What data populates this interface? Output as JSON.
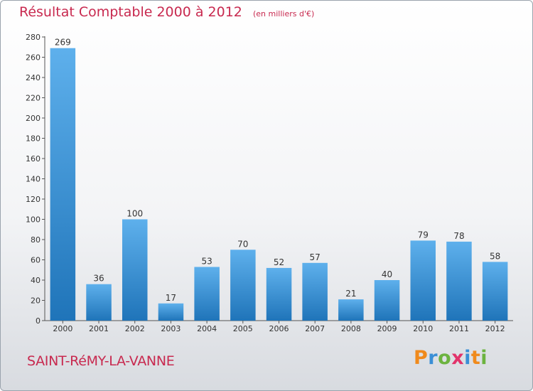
{
  "title": "Résultat Comptable 2000 à 2012",
  "unit": "(en milliers d'€)",
  "commune": "SAINT-RéMY-LA-VANNE",
  "logo": {
    "letters": [
      "P",
      "r",
      "o",
      "x",
      "i",
      "t",
      "i"
    ],
    "colors": [
      "#f08a1c",
      "#3a8fd6",
      "#6cb33f",
      "#e2336b",
      "#3a8fd6",
      "#f08a1c",
      "#6cb33f"
    ]
  },
  "colors": {
    "bar_light": "#5eb0ec",
    "bar_dark": "#1f74b9",
    "title": "#c8294f"
  },
  "chart_data": {
    "type": "bar",
    "categories": [
      "2000",
      "2001",
      "2002",
      "2003",
      "2004",
      "2005",
      "2006",
      "2007",
      "2008",
      "2009",
      "2010",
      "2011",
      "2012"
    ],
    "values": [
      269,
      36,
      100,
      17,
      53,
      70,
      52,
      57,
      21,
      40,
      79,
      78,
      58
    ],
    "data_labels": [
      "269",
      "36",
      "100",
      "17",
      "53",
      "70",
      "52",
      "57",
      "21",
      "40",
      "79",
      "78",
      "58"
    ],
    "ylim": [
      0,
      280
    ],
    "yticks": [
      0,
      20,
      40,
      60,
      80,
      100,
      120,
      140,
      160,
      180,
      200,
      220,
      240,
      260,
      280
    ],
    "grid": false
  }
}
